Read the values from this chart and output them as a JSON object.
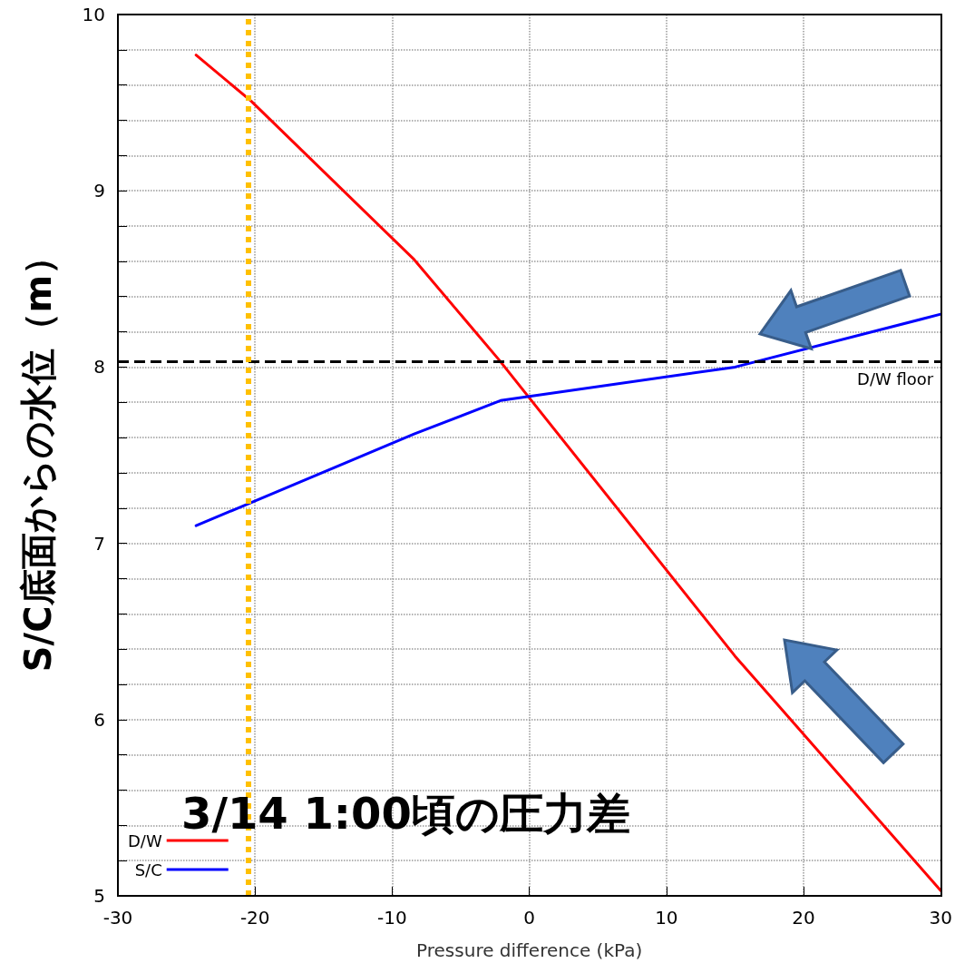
{
  "chart_data": {
    "type": "line",
    "xlabel": "Pressure difference (kPa)",
    "ylabel": "S/C底面からの水位（m）",
    "xlim": [
      -30,
      30
    ],
    "xticks": [
      -30,
      -20,
      -10,
      0,
      10,
      20,
      30
    ],
    "ylim": [
      5,
      10
    ],
    "yticks": [
      5,
      {
        "value": 5.2,
        "label": null
      },
      {
        "value": 5.4,
        "label": null
      },
      {
        "value": 5.6,
        "label": null
      },
      {
        "value": 5.8,
        "label": null
      },
      6,
      {
        "value": 6.2,
        "label": null
      },
      {
        "value": 6.4,
        "label": null
      },
      {
        "value": 6.6,
        "label": null
      },
      {
        "value": 6.8,
        "label": null
      },
      7,
      {
        "value": 7.2,
        "label": null
      },
      {
        "value": 7.4,
        "label": null
      },
      {
        "value": 7.6,
        "label": null
      },
      {
        "value": 7.8,
        "label": null
      },
      8,
      {
        "value": 8.2,
        "label": null
      },
      {
        "value": 8.4,
        "label": null
      },
      {
        "value": 8.6,
        "label": null
      },
      {
        "value": 8.8,
        "label": null
      },
      9,
      {
        "value": 9.2,
        "label": null
      },
      {
        "value": 9.4,
        "label": null
      },
      {
        "value": 9.6,
        "label": null
      },
      {
        "value": 9.8,
        "label": null
      },
      10
    ],
    "grid": true,
    "legend": "bottom left",
    "marker": "none",
    "line_style": "solid",
    "series": [
      {
        "name": "D/W",
        "color": "#ff0000",
        "x": [
          -24.3,
          -20.3,
          -8.4,
          -2.2,
          15.0,
          30
        ],
        "values": [
          9.77,
          9.51,
          8.61,
          8.04,
          6.36,
          5.03
        ]
      },
      {
        "name": "S/C",
        "color": "#0000ff",
        "x": [
          -24.3,
          -8.4,
          -2.1,
          15.0,
          30
        ],
        "values": [
          7.1,
          7.62,
          7.81,
          8.0,
          8.3
        ]
      }
    ],
    "ref_lines": [
      {
        "axis": "y",
        "value": 8.03,
        "label": "D/W floor",
        "color": "#000000",
        "line_style": "dashed"
      },
      {
        "axis": "x",
        "value": -20.5,
        "label": null,
        "color": "#ffc000",
        "line_style": "dotted"
      }
    ],
    "annotations": [
      "3/14 1:00頃の圧力差"
    ]
  }
}
